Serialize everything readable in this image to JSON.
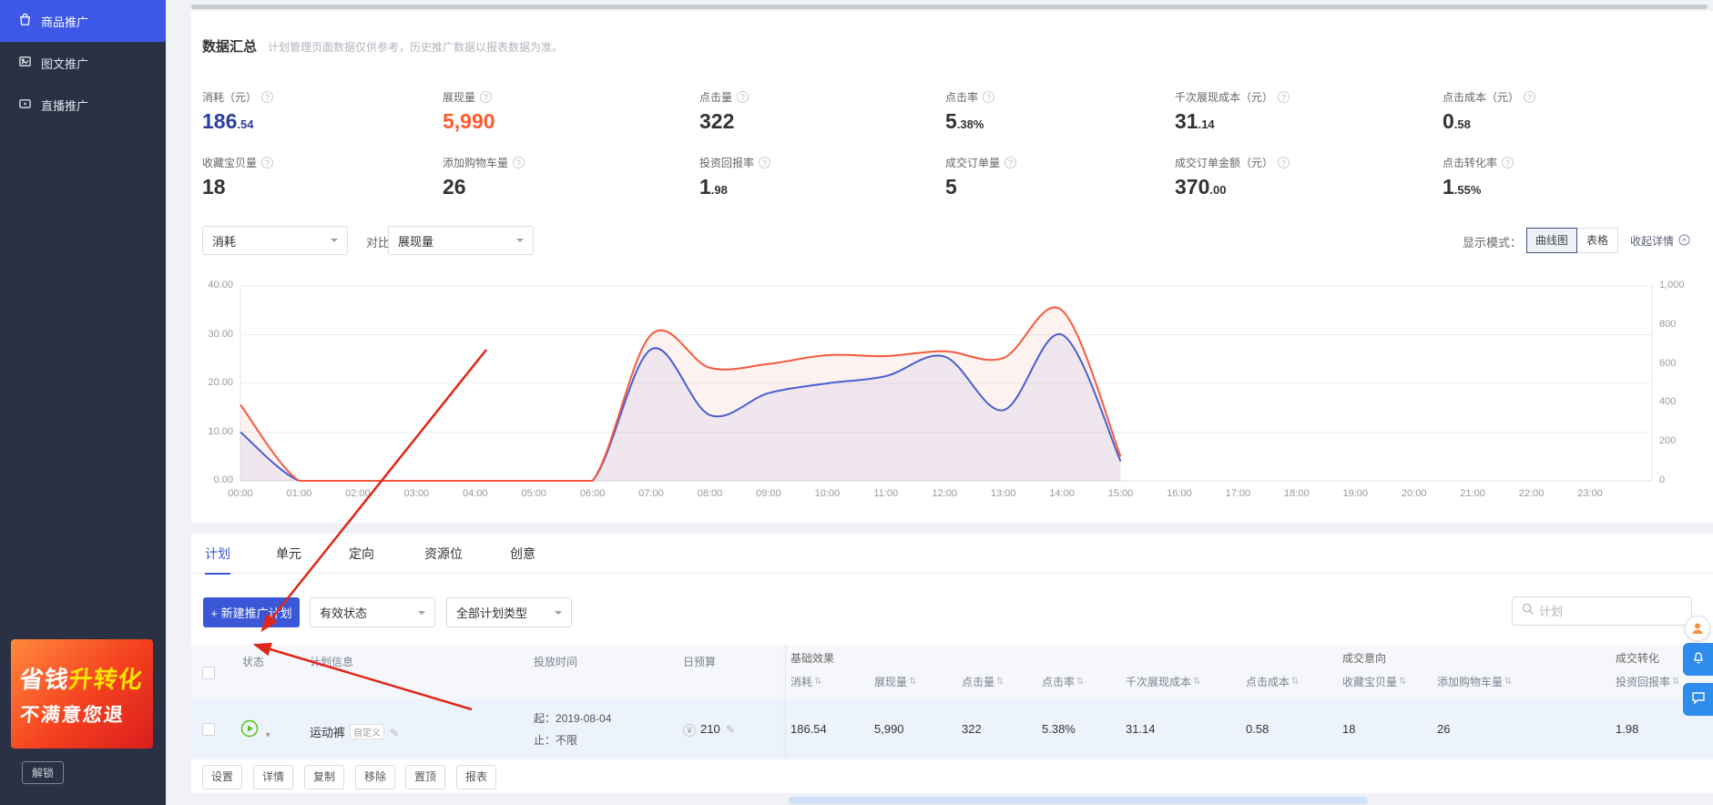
{
  "colors": {
    "accent": "#3a57d7",
    "stat_blue": "#2b3d9e",
    "stat_orange": "#ff5b2e",
    "line_blue": "#3b5fe0",
    "line_red": "#f5593d",
    "status_green": "#52c41a",
    "annotation_red": "#e02619"
  },
  "icons": {
    "help": "?",
    "sort": "⇅",
    "caret_down": "▾",
    "edit": "✎",
    "currency": "¥"
  },
  "sidebar": {
    "items": [
      {
        "label": "商品推广"
      },
      {
        "label": "图文推广"
      },
      {
        "label": "直播推广"
      }
    ],
    "banner": {
      "line1a": "省钱",
      "line1b": "升转化",
      "line2": "不满意您退"
    },
    "unlock_label": "解锁"
  },
  "summary": {
    "title": "数据汇总",
    "subtitle": "计划管理页面数据仅供参考，历史推广数据以报表数据为准。",
    "stats": [
      {
        "label": "消耗（元）",
        "int": "186",
        "dec": ".54"
      },
      {
        "label": "展现量",
        "int": "5,990",
        "dec": ""
      },
      {
        "label": "点击量",
        "int": "322",
        "dec": ""
      },
      {
        "label": "点击率",
        "int": "5",
        "dec": ".38%"
      },
      {
        "label": "千次展现成本（元）",
        "int": "31",
        "dec": ".14"
      },
      {
        "label": "点击成本（元）",
        "int": "0",
        "dec": ".58"
      },
      {
        "label": "收藏宝贝量",
        "int": "18",
        "dec": ""
      },
      {
        "label": "添加购物车量",
        "int": "26",
        "dec": ""
      },
      {
        "label": "投资回报率",
        "int": "1",
        "dec": ".98"
      },
      {
        "label": "成交订单量",
        "int": "5",
        "dec": ""
      },
      {
        "label": "成交订单金额（元）",
        "int": "370",
        "dec": ".00"
      },
      {
        "label": "点击转化率",
        "int": "1",
        "dec": ".55%"
      }
    ]
  },
  "controls": {
    "metric_select": "消耗",
    "compare_label": "对比",
    "compare_select": "展现量",
    "display_mode_label": "显示模式：",
    "mode_curve": "曲线图",
    "mode_table": "表格",
    "collapse_label": "收起详情"
  },
  "chart_data": {
    "type": "line",
    "x": [
      "00:00",
      "01:00",
      "02:00",
      "03:00",
      "04:00",
      "05:00",
      "06:00",
      "07:00",
      "08:00",
      "09:00",
      "10:00",
      "11:00",
      "12:00",
      "13:00",
      "14:00",
      "15:00",
      "16:00",
      "17:00",
      "18:00",
      "19:00",
      "20:00",
      "21:00",
      "22:00",
      "23:00"
    ],
    "left_axis": {
      "min": 0,
      "max": 40,
      "ticks": [
        "40.00",
        "30.00",
        "20.00",
        "10.00",
        "0.00"
      ]
    },
    "right_axis": {
      "min": 0,
      "max": 1000,
      "ticks": [
        "1,000",
        "800",
        "600",
        "400",
        "200",
        "0"
      ]
    },
    "series": [
      {
        "name": "消耗",
        "axis": "left",
        "color": "#3b5fe0",
        "values": [
          10,
          0,
          0,
          0,
          0,
          0,
          0,
          27,
          13.5,
          18,
          20,
          21.5,
          25.5,
          14.5,
          30,
          4,
          null,
          null,
          null,
          null,
          null,
          null,
          null,
          null
        ]
      },
      {
        "name": "展现量",
        "axis": "right",
        "color": "#f5593d",
        "values": [
          390,
          0,
          0,
          0,
          0,
          0,
          0,
          750,
          580,
          600,
          645,
          640,
          665,
          630,
          875,
          125,
          null,
          null,
          null,
          null,
          null,
          null,
          null,
          null
        ]
      }
    ]
  },
  "tabs": [
    "计划",
    "单元",
    "定向",
    "资源位",
    "创意"
  ],
  "toolbar": {
    "new_plan": "+ 新建推广计划",
    "status_select": "有效状态",
    "type_select": "全部计划类型",
    "search_placeholder": "计划"
  },
  "table": {
    "groups": [
      "基础效果",
      "成交意向",
      "成交转化"
    ],
    "fixed_headers": [
      "状态",
      "计划信息",
      "投放时间",
      "日预算"
    ],
    "metric_headers": [
      "消耗",
      "展现量",
      "点击量",
      "点击率",
      "千次展现成本",
      "点击成本",
      "收藏宝贝量",
      "添加购物车量",
      "投资回报率"
    ],
    "row": {
      "name": "运动裤",
      "tag": "自定义",
      "time_start": "起：2019-08-04",
      "time_end": "止：不限",
      "budget": "210",
      "values": [
        "186.54",
        "5,990",
        "322",
        "5.38%",
        "31.14",
        "0.58",
        "18",
        "26",
        "1.98"
      ]
    },
    "actions": [
      "设置",
      "详情",
      "复制",
      "移除",
      "置顶",
      "报表"
    ]
  }
}
